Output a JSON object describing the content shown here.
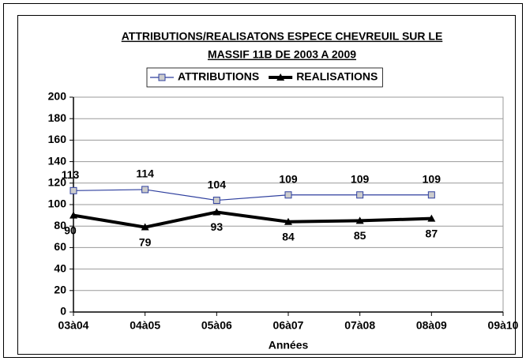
{
  "chart_data": {
    "type": "line",
    "title": [
      "ATTRIBUTIONS/REALISATONS ESPECE CHEVREUIL SUR LE",
      "MASSIF 11B DE 2003 A 2009"
    ],
    "x_label": "Années",
    "categories": [
      "03à04",
      "04à05",
      "05à06",
      "06à07",
      "07à08",
      "08à09",
      "09à10"
    ],
    "series": [
      {
        "name": "ATTRIBUTIONS",
        "color": "#2e3f9e",
        "marker": "square",
        "values": [
          113,
          114,
          104,
          109,
          109,
          109,
          null
        ]
      },
      {
        "name": "REALISATIONS",
        "color": "#000000",
        "marker": "triangle",
        "values": [
          90,
          79,
          93,
          84,
          85,
          87,
          null
        ]
      }
    ],
    "ylim": [
      0,
      200
    ],
    "yticks": [
      0,
      20,
      40,
      60,
      80,
      100,
      120,
      140,
      160,
      180,
      200
    ],
    "grid": true,
    "legend": "top"
  }
}
